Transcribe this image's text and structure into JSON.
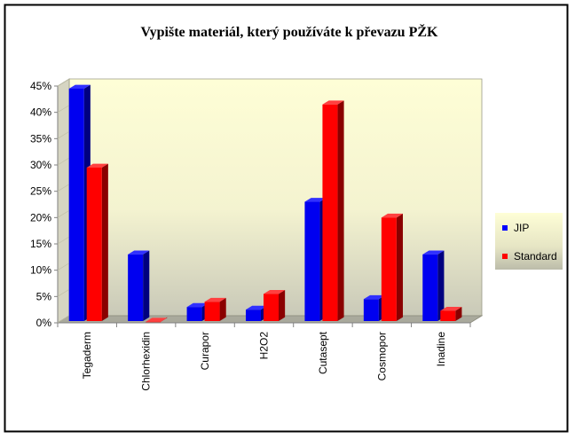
{
  "chart_data": {
    "type": "bar",
    "title": "Vypište materiál, který používáte k převazu PŽK",
    "categories": [
      "Tegaderm",
      "Chlorhexidin",
      "Curapor",
      "H2O2",
      "Cutasept",
      "Cosmopor",
      "Inadine"
    ],
    "series": [
      {
        "name": "JIP",
        "color": "#0000ff",
        "values": [
          44.5,
          13,
          3,
          2.5,
          23,
          4.5,
          13
        ]
      },
      {
        "name": "Standard",
        "color": "#ff0000",
        "values": [
          29.5,
          0.2,
          4,
          5.5,
          41.5,
          20,
          2.3
        ]
      }
    ],
    "yticks": [
      "0%",
      "5%",
      "10%",
      "15%",
      "20%",
      "25%",
      "30%",
      "35%",
      "40%",
      "45%"
    ],
    "ylim": [
      0,
      45
    ],
    "xlabel": "",
    "ylabel": "",
    "legend_position": "right",
    "plot_color": "#fefed6"
  }
}
